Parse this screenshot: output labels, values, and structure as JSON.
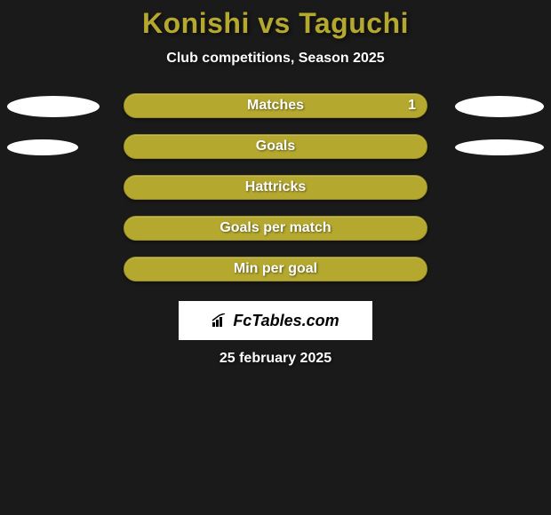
{
  "title": "Konishi vs Taguchi",
  "subtitle": "Club competitions, Season 2025",
  "colors": {
    "background": "#1a1a1a",
    "accent": "#b5a82e",
    "text": "#ffffff",
    "ellipse": "#ffffff",
    "logo_bg": "#ffffff",
    "logo_text": "#000000"
  },
  "stats": [
    {
      "label": "Matches",
      "value_right": "1",
      "left_ellipse": {
        "width": 104,
        "height": 24
      },
      "right_ellipse": {
        "width": 100,
        "height": 24
      }
    },
    {
      "label": "Goals",
      "value_right": null,
      "left_ellipse": {
        "width": 80,
        "height": 18
      },
      "right_ellipse": {
        "width": 100,
        "height": 18
      }
    },
    {
      "label": "Hattricks",
      "value_right": null,
      "left_ellipse": null,
      "right_ellipse": null
    },
    {
      "label": "Goals per match",
      "value_right": null,
      "left_ellipse": null,
      "right_ellipse": null
    },
    {
      "label": "Min per goal",
      "value_right": null,
      "left_ellipse": null,
      "right_ellipse": null
    }
  ],
  "logo": "FcTables.com",
  "date": "25 february 2025"
}
